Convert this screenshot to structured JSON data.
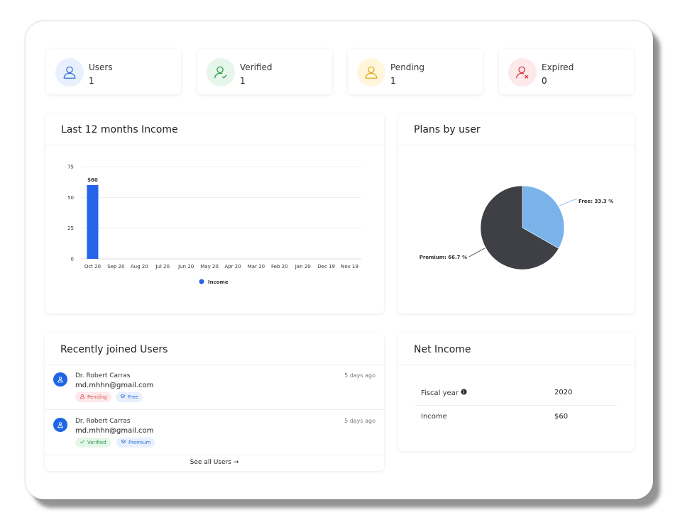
{
  "stats": [
    {
      "label": "Users",
      "value": "1",
      "icon": "user-icon",
      "color": "#2f6fd6",
      "bg": "#e8f0fd"
    },
    {
      "label": "Verified",
      "value": "1",
      "icon": "user-check-icon",
      "color": "#2e9a4e",
      "bg": "#e6f6ea"
    },
    {
      "label": "Pending",
      "value": "1",
      "icon": "user-clock-icon",
      "color": "#e0a81a",
      "bg": "#fff6dc"
    },
    {
      "label": "Expired",
      "value": "0",
      "icon": "user-x-icon",
      "color": "#d9363e",
      "bg": "#fde8ea"
    }
  ],
  "income_card": {
    "title": "Last 12 months Income",
    "legend": "Income",
    "bar_label": "$60"
  },
  "plans_card": {
    "title": "Plans by user",
    "free_label": "Free: 33.3 %",
    "premium_label": "Premium: 66.7 %"
  },
  "chart_data": [
    {
      "type": "bar",
      "categories": [
        "Oct 20",
        "Sep 20",
        "Aug 20",
        "Jul 20",
        "Jun 20",
        "May 20",
        "Apr 20",
        "Mar 20",
        "Feb 20",
        "Jan 20",
        "Dec 19",
        "Nov 19"
      ],
      "series": [
        {
          "name": "Income",
          "values": [
            60,
            0,
            0,
            0,
            0,
            0,
            0,
            0,
            0,
            0,
            0,
            0
          ]
        }
      ],
      "yticks": [
        "0",
        "25",
        "50",
        "75"
      ],
      "ylim": [
        0,
        75
      ],
      "grid": true,
      "legend": "bottom",
      "bar_color": "#2563eb"
    },
    {
      "type": "pie",
      "slices": [
        {
          "name": "Free",
          "value": 33.3,
          "color": "#7ab3ea"
        },
        {
          "name": "Premium",
          "value": 66.7,
          "color": "#3f3f46"
        }
      ]
    }
  ],
  "recent_users": {
    "title": "Recently joined Users",
    "see_all": "See all Users →",
    "items": [
      {
        "name": "Dr. Robert Carras",
        "email": "md.mhhn@gmail.com",
        "time": "5 days ago",
        "status": "Pending",
        "status_color": "#e0555c",
        "status_bg": "#fde8ea",
        "plan": "Free"
      },
      {
        "name": "Dr. Robert Carras",
        "email": "md.mhhn@gmail.com",
        "time": "5 days ago",
        "status": "Verified",
        "status_color": "#2e9a4e",
        "status_bg": "#e4f6e8",
        "plan": "Premium"
      }
    ]
  },
  "net_income": {
    "title": "Net Income",
    "fiscal_label": "Fiscal year",
    "fiscal_value": "2020",
    "income_label": "Income",
    "income_value": "$60"
  }
}
